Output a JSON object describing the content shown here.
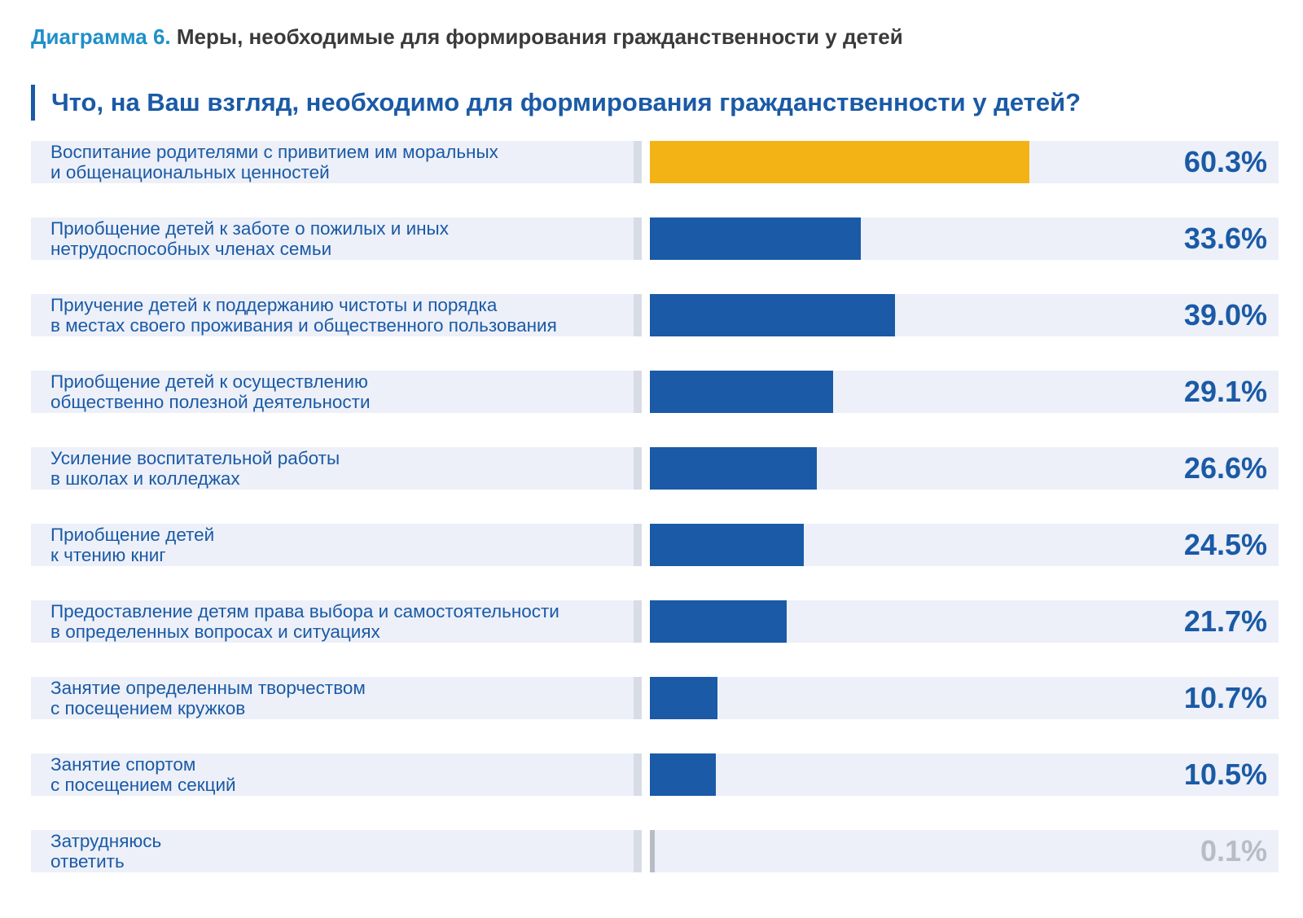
{
  "header": {
    "diagram_prefix": "Диаграмма 6.",
    "diagram_title": "Меры, необходимые для формирования гражданственности у детей",
    "question": "Что, на Ваш взгляд, необходимо для формирования гражданственности у детей?"
  },
  "colors": {
    "primary_bar": "#1a5aa6",
    "highlight_bar": "#f4b315",
    "muted": "#b8bcc4"
  },
  "chart_data": {
    "type": "bar",
    "orientation": "horizontal",
    "unit": "%",
    "xlim": [
      0,
      100
    ],
    "categories": [
      [
        "Воспитание родителями с привитием им моральных",
        "и общенациональных ценностей"
      ],
      [
        "Приобщение детей к заботе о пожилых и иных",
        "нетрудоспособных членах семьи"
      ],
      [
        "Приучение детей к поддержанию чистоты и порядка",
        "в местах своего проживания и общественного пользования"
      ],
      [
        "Приобщение детей к осуществлению",
        "общественно полезной деятельности"
      ],
      [
        "Усиление воспитательной работы",
        "в школах и колледжах"
      ],
      [
        "Приобщение детей",
        "к чтению книг"
      ],
      [
        "Предоставление детям права выбора и самостоятельности",
        "в определенных вопросах и ситуациях"
      ],
      [
        "Занятие определенным творчеством",
        "с посещением кружков"
      ],
      [
        "Занятие спортом",
        "с посещением секций"
      ],
      [
        "Затрудняюсь",
        "ответить"
      ]
    ],
    "values": [
      60.3,
      33.6,
      39.0,
      29.1,
      26.6,
      24.5,
      21.7,
      10.7,
      10.5,
      0.1
    ],
    "value_labels": [
      "60.3%",
      "33.6%",
      "39.0%",
      "29.1%",
      "26.6%",
      "24.5%",
      "21.7%",
      "10.7%",
      "10.5%",
      "0.1%"
    ],
    "highlight_index": 0,
    "muted_index": 9
  }
}
